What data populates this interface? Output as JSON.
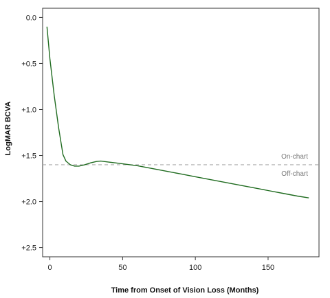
{
  "chart_data": {
    "type": "line",
    "xlabel": "Time from Onset of Vision Loss (Months)",
    "ylabel": "LogMAR BCVA",
    "xlim": [
      -5,
      185
    ],
    "ylim": [
      2.6,
      -0.1
    ],
    "x_ticks": [
      0,
      50,
      100,
      150
    ],
    "x_tick_labels": [
      "0",
      "50",
      "100",
      "150"
    ],
    "y_ticks": [
      0.0,
      0.5,
      1.0,
      1.5,
      2.0,
      2.5
    ],
    "y_tick_labels": [
      "0.0",
      "+0.5",
      "+1.0",
      "+1.5",
      "+2.0",
      "+2.5"
    ],
    "series": [
      {
        "color": "#1f6b1f",
        "x": [
          -2,
          0,
          3,
          6,
          9,
          11,
          14,
          17,
          20,
          24,
          28,
          32,
          35,
          40,
          45,
          50,
          55,
          60,
          70,
          80,
          90,
          100,
          110,
          120,
          130,
          140,
          150,
          160,
          170,
          178
        ],
        "y": [
          0.1,
          0.45,
          0.85,
          1.2,
          1.49,
          1.56,
          1.6,
          1.615,
          1.615,
          1.6,
          1.58,
          1.565,
          1.56,
          1.57,
          1.58,
          1.59,
          1.6,
          1.61,
          1.64,
          1.67,
          1.7,
          1.73,
          1.76,
          1.79,
          1.82,
          1.85,
          1.88,
          1.91,
          1.94,
          1.96
        ]
      }
    ],
    "reference_line": {
      "y": 1.6,
      "color": "#aaaaaa",
      "style": "dashed",
      "label_above": "On-chart",
      "label_below": "Off-chart"
    },
    "grid": false,
    "legend": "none"
  }
}
